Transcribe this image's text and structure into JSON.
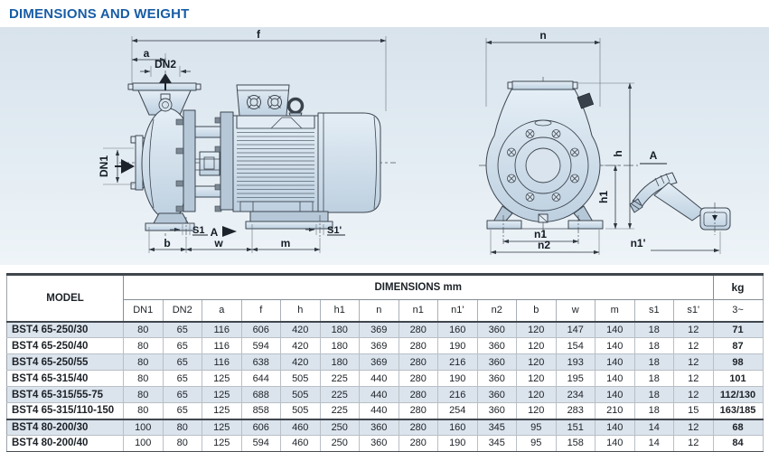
{
  "page": {
    "title": "DIMENSIONS AND WEIGHT"
  },
  "drawing": {
    "side_labels": {
      "f": "f",
      "a": "a",
      "dn2": "DN2",
      "dn1": "DN1",
      "s1": "S1",
      "a_view": "A",
      "s1p": "S1'",
      "b": "b",
      "w": "w",
      "m": "m"
    },
    "front_labels": {
      "n": "n",
      "h": "h",
      "h1": "h1",
      "n1": "n1",
      "n2": "n2",
      "a_detail": "A",
      "n1p": "n1'"
    }
  },
  "table": {
    "model_header": "MODEL",
    "group_header": "DIMENSIONS mm",
    "kg_header": "kg",
    "kg_subheader": "3~",
    "dim_columns": [
      "DN1",
      "DN2",
      "a",
      "f",
      "h",
      "h1",
      "n",
      "n1",
      "n1'",
      "n2",
      "b",
      "w",
      "m",
      "s1",
      "s1'"
    ],
    "rows": [
      {
        "model": "BST4 65-250/30",
        "values": [
          80,
          65,
          116,
          606,
          420,
          180,
          369,
          280,
          160,
          360,
          120,
          147,
          140,
          18,
          12
        ],
        "kg": "71"
      },
      {
        "model": "BST4 65-250/40",
        "values": [
          80,
          65,
          116,
          594,
          420,
          180,
          369,
          280,
          190,
          360,
          120,
          154,
          140,
          18,
          12
        ],
        "kg": "87"
      },
      {
        "model": "BST4 65-250/55",
        "values": [
          80,
          65,
          116,
          638,
          420,
          180,
          369,
          280,
          216,
          360,
          120,
          193,
          140,
          18,
          12
        ],
        "kg": "98"
      },
      {
        "model": "BST4 65-315/40",
        "values": [
          80,
          65,
          125,
          644,
          505,
          225,
          440,
          280,
          190,
          360,
          120,
          195,
          140,
          18,
          12
        ],
        "kg": "101"
      },
      {
        "model": "BST4 65-315/55-75",
        "values": [
          80,
          65,
          125,
          688,
          505,
          225,
          440,
          280,
          216,
          360,
          120,
          234,
          140,
          18,
          12
        ],
        "kg": "112/130"
      },
      {
        "model": "BST4 65-315/110-150",
        "values": [
          80,
          65,
          125,
          858,
          505,
          225,
          440,
          280,
          254,
          360,
          120,
          283,
          210,
          18,
          15
        ],
        "kg": "163/185"
      },
      {
        "model": "BST4 80-200/30",
        "values": [
          100,
          80,
          125,
          606,
          460,
          250,
          360,
          280,
          160,
          345,
          95,
          151,
          140,
          14,
          12
        ],
        "kg": "68",
        "separator_above": true
      },
      {
        "model": "BST4 80-200/40",
        "values": [
          100,
          80,
          125,
          594,
          460,
          250,
          360,
          280,
          190,
          345,
          95,
          158,
          140,
          14,
          12
        ],
        "kg": "84"
      }
    ]
  },
  "colors": {
    "title_blue": "#185da6",
    "row_shade": "#dbe3ec",
    "drawing_body": "#c9d9e8"
  }
}
